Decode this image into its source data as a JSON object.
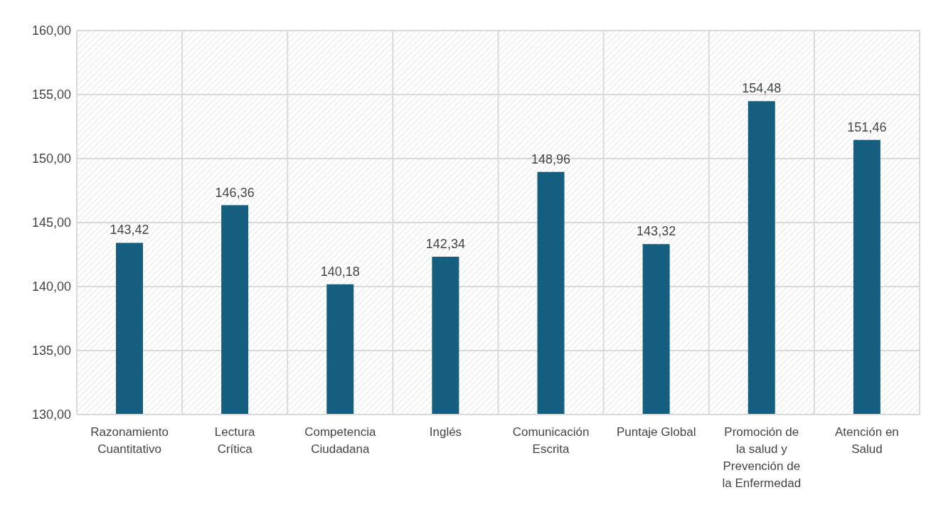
{
  "chart_data": {
    "type": "bar",
    "categories": [
      "Razonamiento Cuantitativo",
      "Lectura Crítica",
      "Competencia Ciudadana",
      "Inglés",
      "Comunicación Escrita",
      "Puntaje Global",
      "Promoción de la salud y Prevención de la Enfermedad",
      "Atención en Salud"
    ],
    "values": [
      143.42,
      146.36,
      140.18,
      142.34,
      148.96,
      143.32,
      154.48,
      151.46
    ],
    "value_labels": [
      "143,42",
      "146,36",
      "140,18",
      "142,34",
      "148,96",
      "143,32",
      "154,48",
      "151,46"
    ],
    "color": "#155e80",
    "ylim": [
      130,
      160
    ],
    "yticks": [
      {
        "value": 130,
        "label": "130,00"
      },
      {
        "value": 135,
        "label": "135,00"
      },
      {
        "value": 140,
        "label": "140,00"
      },
      {
        "value": 145,
        "label": "145,00"
      },
      {
        "value": 150,
        "label": "150,00"
      },
      {
        "value": 155,
        "label": "155,00"
      },
      {
        "value": 160,
        "label": "160,00"
      }
    ],
    "grid": true
  }
}
